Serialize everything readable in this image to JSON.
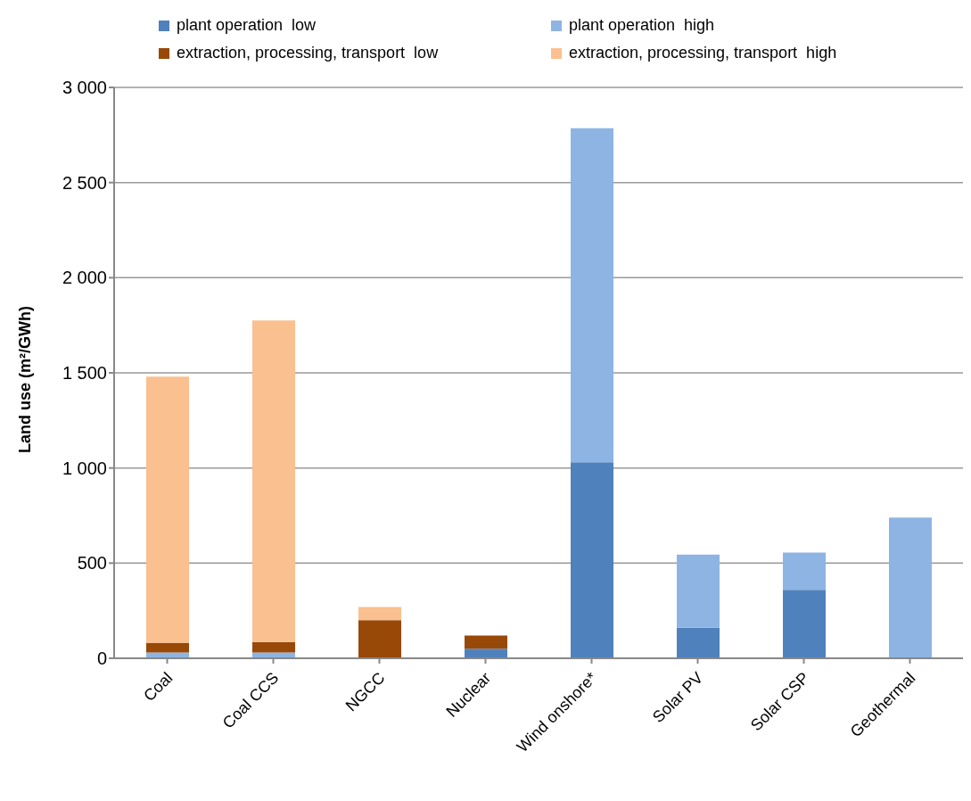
{
  "chart_data": {
    "type": "bar",
    "stacked": true,
    "ylabel": "Land use (m²/GWh)",
    "categories": [
      "Coal",
      "Coal CCS",
      "NGCC",
      "Nuclear",
      "Wind onshore*",
      "Solar PV",
      "Solar CSP",
      "Geothermal"
    ],
    "series": [
      {
        "name": "plant operation  low",
        "color": "#4f81bd",
        "values": [
          0,
          0,
          0,
          50,
          1030,
          160,
          360,
          0
        ]
      },
      {
        "name": "plant operation  high",
        "color": "#8eb4e3",
        "values": [
          30,
          30,
          0,
          0,
          1755,
          385,
          195,
          740
        ]
      },
      {
        "name": "extraction, processing, transport  low",
        "color": "#984807",
        "values": [
          50,
          55,
          200,
          70,
          0,
          0,
          0,
          0
        ]
      },
      {
        "name": "extraction, processing, transport  high",
        "color": "#fac090",
        "values": [
          1400,
          1690,
          70,
          0,
          0,
          0,
          0,
          0
        ]
      }
    ],
    "ylim": [
      0,
      3000
    ],
    "yticks": [
      0,
      500,
      {
        "value": 1000,
        "label": "1 000"
      },
      {
        "value": 1500,
        "label": "1 500"
      },
      {
        "value": 2000,
        "label": "2 000"
      },
      {
        "value": 2500,
        "label": "2 500"
      },
      {
        "value": 3000,
        "label": "3 000"
      }
    ],
    "grid": "y",
    "legend": "top"
  }
}
